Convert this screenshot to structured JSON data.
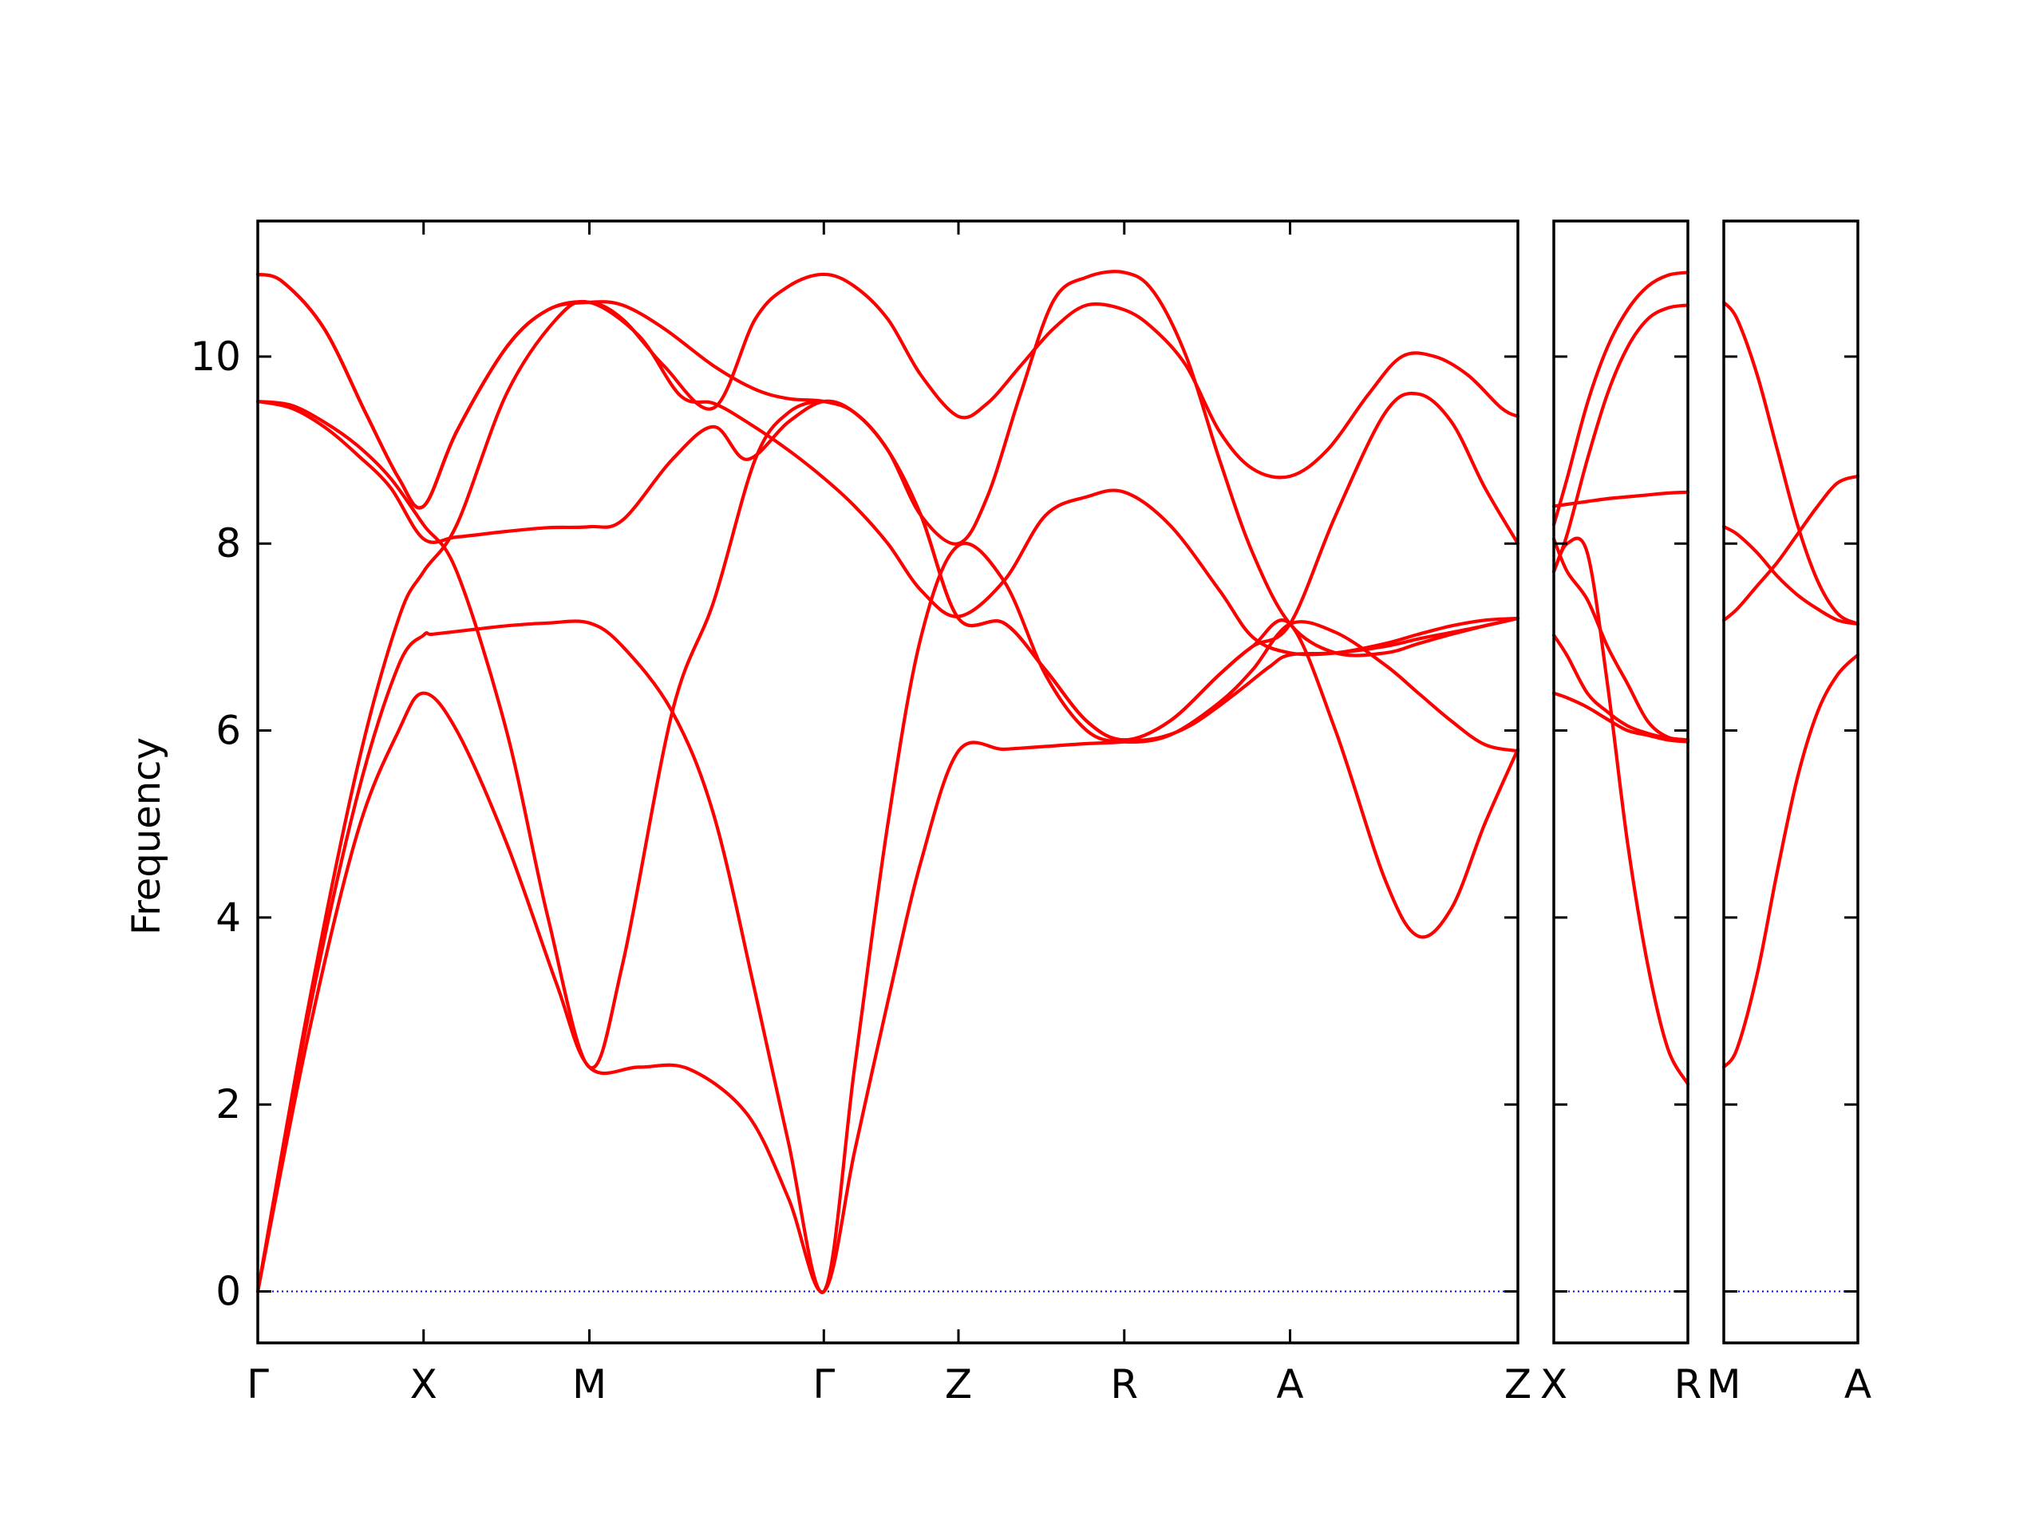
{
  "chart_data": {
    "type": "line",
    "ylabel": "Frequency",
    "xlabel": "",
    "ylim": [
      -0.55,
      11.45
    ],
    "yticks": [
      0,
      2,
      4,
      6,
      8,
      10
    ],
    "grid": false,
    "colors": {
      "bands": "#ff0000",
      "zero_line": "#0000cc"
    },
    "panels": [
      {
        "id": "panel1",
        "xlim": [
          0,
          7.6
        ],
        "ticks": [
          {
            "x": 0,
            "label": "Γ"
          },
          {
            "x": 1,
            "label": "X"
          },
          {
            "x": 2,
            "label": "M"
          },
          {
            "x": 3.414,
            "label": "Γ"
          },
          {
            "x": 4.226,
            "label": "Z"
          },
          {
            "x": 5.226,
            "label": "R"
          },
          {
            "x": 6.226,
            "label": "A"
          },
          {
            "x": 7.6,
            "label": "Z"
          }
        ],
        "branches": [
          {
            "x": [
              0,
              0.3,
              0.6,
              0.85,
              1.0,
              1.2,
              1.5,
              1.8,
              2.0,
              2.3,
              2.6,
              2.95,
              3.2,
              3.414,
              3.6,
              3.8,
              4.0,
              4.226,
              4.5,
              4.75,
              5.0,
              5.226,
              5.45,
              5.65,
              5.9,
              6.1,
              6.226,
              6.5,
              6.8,
              7.0,
              7.2,
              7.4,
              7.6
            ],
            "y": [
              0,
              2.7,
              4.9,
              6.0,
              6.4,
              6.0,
              4.8,
              3.3,
              2.4,
              2.4,
              2.38,
              1.9,
              1.0,
              0,
              1.5,
              3.1,
              4.6,
              5.78,
              5.8,
              5.83,
              5.86,
              5.88,
              5.93,
              6.08,
              6.4,
              6.68,
              6.81,
              6.83,
              6.9,
              6.98,
              7.05,
              7.12,
              7.2
            ]
          },
          {
            "x": [
              0,
              0.3,
              0.6,
              0.85,
              1.0,
              1.05,
              1.25,
              1.5,
              1.75,
              2.0,
              2.2,
              2.5,
              2.75,
              3.0,
              3.2,
              3.414,
              3.6,
              3.8,
              4.0,
              4.226,
              4.5,
              4.75,
              5.0,
              5.226,
              5.5,
              5.8,
              6.0,
              6.226,
              6.5,
              6.8,
              7.0,
              7.2,
              7.4,
              7.6
            ],
            "y": [
              0,
              2.9,
              5.3,
              6.7,
              7.02,
              7.03,
              7.07,
              7.12,
              7.15,
              7.15,
              6.9,
              6.2,
              5.1,
              3.2,
              1.6,
              0,
              2.4,
              5.0,
              7.0,
              7.98,
              7.6,
              6.6,
              6.0,
              5.88,
              5.95,
              6.3,
              6.65,
              7.14,
              7.05,
              6.7,
              6.4,
              6.1,
              5.85,
              5.78
            ]
          },
          {
            "x": [
              0,
              0.3,
              0.6,
              0.85,
              1.0,
              1.2,
              1.5,
              1.8,
              2.0,
              2.3,
              2.55,
              2.75,
              2.95,
              3.2,
              3.414,
              3.6,
              3.8,
              4.0,
              4.226,
              4.5,
              4.75,
              5.0,
              5.226,
              5.5,
              5.8,
              6.0,
              6.226,
              6.5,
              6.8,
              7.0,
              7.2,
              7.4,
              7.6
            ],
            "y": [
              0,
              3.0,
              5.6,
              7.2,
              7.7,
              8.2,
              9.6,
              10.4,
              10.58,
              10.22,
              9.58,
              9.5,
              9.3,
              9.0,
              8.7,
              8.4,
              8.0,
              7.5,
              7.22,
              7.6,
              8.3,
              8.5,
              8.55,
              8.2,
              7.5,
              7.0,
              6.83,
              6.83,
              6.93,
              7.03,
              7.12,
              7.18,
              7.2
            ]
          },
          {
            "x": [
              0,
              0.2,
              0.4,
              0.6,
              0.8,
              1.0,
              1.2,
              1.5,
              1.75,
              2.0,
              2.2,
              2.5,
              2.75,
              3.0,
              3.2,
              3.414,
              3.6,
              3.8,
              4.0,
              4.226,
              4.5,
              4.75,
              5.0,
              5.226,
              5.5,
              5.8,
              6.0,
              6.226,
              6.5,
              6.8,
              7.0,
              7.2,
              7.4,
              7.6
            ],
            "y": [
              9.52,
              9.48,
              9.3,
              9.05,
              8.7,
              8.2,
              7.7,
              6.0,
              4.0,
              2.4,
              3.5,
              6.2,
              7.38,
              8.9,
              9.4,
              9.52,
              9.4,
              9.0,
              8.3,
              7.2,
              7.15,
              6.65,
              6.1,
              5.9,
              6.1,
              6.6,
              6.9,
              7.14,
              6.0,
              4.4,
              3.8,
              4.1,
              5.0,
              5.8
            ]
          },
          {
            "x": [
              0,
              0.2,
              0.4,
              0.6,
              0.8,
              1.0,
              1.2,
              1.5,
              1.75,
              2.0,
              2.2,
              2.5,
              2.75,
              2.95,
              3.2,
              3.414,
              3.6,
              3.8,
              4.0,
              4.226,
              4.5,
              4.75,
              5.0,
              5.226,
              5.5,
              5.8,
              6.0,
              6.226,
              6.5,
              6.8,
              7.0,
              7.2,
              7.4,
              7.6
            ],
            "y": [
              9.52,
              9.45,
              9.25,
              8.95,
              8.6,
              8.05,
              8.07,
              8.13,
              8.17,
              8.18,
              8.25,
              8.9,
              9.25,
              8.9,
              9.3,
              9.52,
              9.4,
              9.0,
              8.3,
              7.2,
              7.15,
              6.65,
              6.1,
              5.9,
              6.1,
              6.6,
              6.9,
              7.14,
              8.3,
              9.4,
              9.6,
              9.3,
              8.6,
              8.0
            ]
          },
          {
            "x": [
              0,
              0.15,
              0.4,
              0.65,
              0.85,
              1.0,
              1.2,
              1.5,
              1.75,
              2.0,
              2.2,
              2.45,
              2.75,
              3.0,
              3.2,
              3.414,
              3.6,
              3.8,
              4.0,
              4.226,
              4.4,
              4.6,
              4.8,
              5.0,
              5.226,
              5.4,
              5.6,
              5.8,
              6.0,
              6.226,
              6.45,
              6.7,
              6.9,
              7.1,
              7.3,
              7.5,
              7.6
            ],
            "y": [
              10.88,
              10.8,
              10.3,
              9.4,
              8.7,
              8.4,
              9.2,
              10.1,
              10.5,
              10.58,
              10.4,
              9.9,
              9.45,
              10.4,
              10.75,
              10.88,
              10.75,
              10.4,
              9.8,
              9.36,
              9.5,
              9.9,
              10.3,
              10.55,
              10.5,
              10.3,
              9.9,
              9.2,
              8.8,
              8.72,
              9.0,
              9.6,
              10.0,
              10.0,
              9.8,
              9.45,
              9.36
            ]
          },
          {
            "x": [
              0,
              0.15,
              0.4,
              0.65,
              0.85,
              1.0,
              1.2,
              1.5,
              1.75,
              2.0,
              2.2,
              2.45,
              2.75,
              3.0,
              3.2,
              3.414,
              3.6,
              3.8,
              4.0,
              4.226,
              4.4,
              4.6,
              4.8,
              5.0,
              5.226,
              5.4,
              5.6,
              5.8,
              6.0,
              6.226,
              6.5,
              6.8,
              7.0,
              7.2,
              7.4,
              7.6
            ],
            "y": [
              10.88,
              10.8,
              10.3,
              9.4,
              8.7,
              8.4,
              9.2,
              10.1,
              10.5,
              10.58,
              10.55,
              10.3,
              9.9,
              9.65,
              9.55,
              9.52,
              9.4,
              9.0,
              8.3,
              8.0,
              8.5,
              9.6,
              10.6,
              10.85,
              10.9,
              10.7,
              10.0,
              8.9,
              7.9,
              7.14,
              6.83,
              6.83,
              6.93,
              7.03,
              7.12,
              7.2
            ]
          }
        ]
      },
      {
        "id": "panel2",
        "xlim": [
          0,
          1
        ],
        "ticks": [
          {
            "x": 0,
            "label": "X"
          },
          {
            "x": 1,
            "label": "R"
          }
        ],
        "branches": [
          {
            "x": [
              0,
              0.1,
              0.25,
              0.4,
              0.55,
              0.7,
              0.85,
              1.0
            ],
            "y": [
              6.4,
              6.35,
              6.25,
              6.12,
              6.0,
              5.95,
              5.9,
              5.88
            ]
          },
          {
            "x": [
              0,
              0.1,
              0.25,
              0.4,
              0.55,
              0.7,
              0.85,
              1.0
            ],
            "y": [
              7.02,
              6.8,
              6.4,
              6.2,
              6.05,
              5.97,
              5.92,
              5.9
            ]
          },
          {
            "x": [
              0,
              0.1,
              0.25,
              0.4,
              0.55,
              0.7,
              0.85,
              1.0
            ],
            "y": [
              7.7,
              8.0,
              7.9,
              6.5,
              4.8,
              3.5,
              2.6,
              2.22
            ]
          },
          {
            "x": [
              0,
              0.1,
              0.25,
              0.4,
              0.55,
              0.7,
              0.85,
              1.0
            ],
            "y": [
              8.05,
              7.7,
              7.4,
              6.9,
              6.5,
              6.1,
              5.93,
              5.9
            ]
          },
          {
            "x": [
              0,
              0.1,
              0.25,
              0.4,
              0.55,
              0.7,
              0.85,
              1.0
            ],
            "y": [
              8.4,
              8.42,
              8.45,
              8.48,
              8.5,
              8.52,
              8.54,
              8.55
            ]
          },
          {
            "x": [
              0,
              0.1,
              0.25,
              0.4,
              0.55,
              0.7,
              0.85,
              1.0
            ],
            "y": [
              7.7,
              8.1,
              8.9,
              9.6,
              10.1,
              10.4,
              10.52,
              10.55
            ]
          },
          {
            "x": [
              0,
              0.1,
              0.25,
              0.4,
              0.55,
              0.7,
              0.85,
              1.0
            ],
            "y": [
              8.2,
              8.7,
              9.5,
              10.1,
              10.5,
              10.75,
              10.87,
              10.9
            ]
          }
        ]
      },
      {
        "id": "panel3",
        "xlim": [
          0,
          1
        ],
        "ticks": [
          {
            "x": 0,
            "label": "M"
          },
          {
            "x": 1,
            "label": "A"
          }
        ],
        "branches": [
          {
            "x": [
              0,
              0.1,
              0.25,
              0.4,
              0.55,
              0.7,
              0.85,
              1.0
            ],
            "y": [
              2.4,
              2.6,
              3.4,
              4.5,
              5.5,
              6.2,
              6.6,
              6.81
            ]
          },
          {
            "x": [
              0,
              0.1,
              0.25,
              0.4,
              0.55,
              0.7,
              0.85,
              1.0
            ],
            "y": [
              7.18,
              7.3,
              7.55,
              7.8,
              8.1,
              8.4,
              8.65,
              8.72
            ]
          },
          {
            "x": [
              0,
              0.1,
              0.25,
              0.4,
              0.55,
              0.7,
              0.85,
              1.0
            ],
            "y": [
              8.18,
              8.1,
              7.9,
              7.65,
              7.45,
              7.3,
              7.18,
              7.14
            ]
          },
          {
            "x": [
              0,
              0.1,
              0.25,
              0.4,
              0.55,
              0.7,
              0.85,
              1.0
            ],
            "y": [
              10.58,
              10.4,
              9.8,
              9.0,
              8.2,
              7.6,
              7.25,
              7.14
            ]
          }
        ]
      }
    ]
  }
}
